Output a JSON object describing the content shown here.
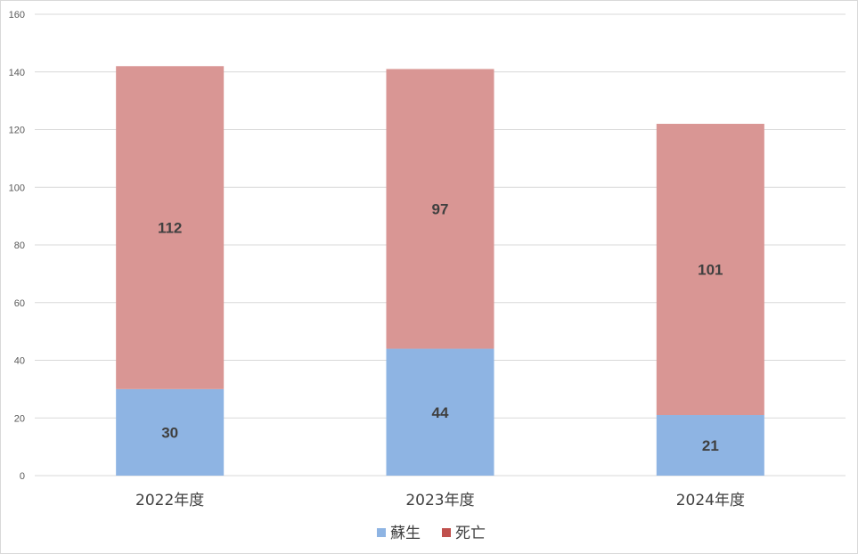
{
  "chart_data": {
    "type": "bar",
    "stacked": true,
    "title": "",
    "xlabel": "",
    "ylabel": "",
    "categories": [
      "2022年度",
      "2023年度",
      "2024年度"
    ],
    "series": [
      {
        "name": "蘇生",
        "values": [
          30,
          44,
          21
        ],
        "color": "#8eb4e3"
      },
      {
        "name": "死亡",
        "values": [
          112,
          97,
          101
        ],
        "color": "#d99694"
      }
    ],
    "ylim": [
      0,
      160
    ],
    "yticks": [
      0,
      20,
      40,
      60,
      80,
      100,
      120,
      140,
      160
    ],
    "grid": true,
    "legend_position": "bottom",
    "legend_marker_colors": [
      "#8eb4e3",
      "#c0504d"
    ]
  }
}
